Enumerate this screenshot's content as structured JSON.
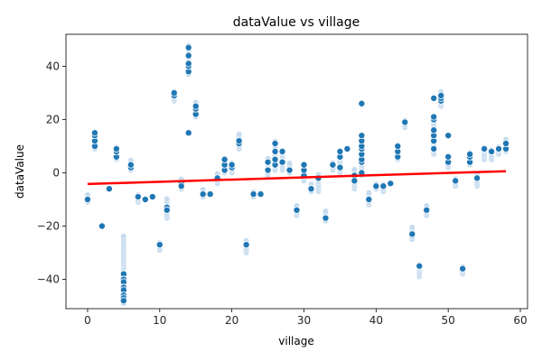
{
  "chart_data": {
    "type": "scatter",
    "title": "dataValue vs village",
    "xlabel": "village",
    "ylabel": "dataValue",
    "xlim": [
      -3,
      61
    ],
    "ylim": [
      -51,
      52
    ],
    "xticks": [
      0,
      10,
      20,
      30,
      40,
      50,
      60
    ],
    "yticks": [
      -40,
      -20,
      0,
      20,
      40
    ],
    "grid": false,
    "colors": {
      "point_fill": "#1f77b4",
      "point_edge": "#ffffff",
      "faded_point": "#c6dbef",
      "trend_line": "#ff0000",
      "axis": "#000000"
    },
    "points": [
      [
        0,
        -10
      ],
      [
        1,
        10
      ],
      [
        1,
        12
      ],
      [
        1,
        14
      ],
      [
        1,
        15
      ],
      [
        2,
        -20
      ],
      [
        3,
        -6
      ],
      [
        4,
        6
      ],
      [
        4,
        8
      ],
      [
        4,
        9
      ],
      [
        5,
        -38
      ],
      [
        5,
        -40
      ],
      [
        5,
        -41
      ],
      [
        5,
        -43
      ],
      [
        5,
        -44
      ],
      [
        5,
        -46
      ],
      [
        5,
        -47
      ],
      [
        5,
        -48
      ],
      [
        6,
        2
      ],
      [
        6,
        3
      ],
      [
        7,
        -9
      ],
      [
        8,
        -10
      ],
      [
        9,
        -9
      ],
      [
        10,
        -27
      ],
      [
        11,
        -13
      ],
      [
        11,
        -14
      ],
      [
        12,
        29
      ],
      [
        12,
        30
      ],
      [
        13,
        -4
      ],
      [
        13,
        -5
      ],
      [
        14,
        15
      ],
      [
        14,
        38
      ],
      [
        14,
        40
      ],
      [
        14,
        41
      ],
      [
        14,
        44
      ],
      [
        14,
        47
      ],
      [
        15,
        22
      ],
      [
        15,
        24
      ],
      [
        15,
        25
      ],
      [
        16,
        -8
      ],
      [
        17,
        -8
      ],
      [
        18,
        -2
      ],
      [
        19,
        1
      ],
      [
        19,
        3
      ],
      [
        19,
        5
      ],
      [
        20,
        2
      ],
      [
        20,
        3
      ],
      [
        21,
        11
      ],
      [
        21,
        12
      ],
      [
        22,
        -27
      ],
      [
        23,
        -8
      ],
      [
        24,
        -8
      ],
      [
        25,
        1
      ],
      [
        25,
        4
      ],
      [
        26,
        3
      ],
      [
        26,
        5
      ],
      [
        26,
        8
      ],
      [
        26,
        11
      ],
      [
        27,
        4
      ],
      [
        27,
        8
      ],
      [
        28,
        1
      ],
      [
        29,
        -14
      ],
      [
        30,
        -1
      ],
      [
        30,
        1
      ],
      [
        30,
        3
      ],
      [
        31,
        -6
      ],
      [
        32,
        -2
      ],
      [
        33,
        -17
      ],
      [
        34,
        3
      ],
      [
        35,
        2
      ],
      [
        35,
        6
      ],
      [
        35,
        8
      ],
      [
        36,
        9
      ],
      [
        37,
        -1
      ],
      [
        37,
        -3
      ],
      [
        38,
        0
      ],
      [
        38,
        4
      ],
      [
        38,
        5
      ],
      [
        38,
        7
      ],
      [
        38,
        9
      ],
      [
        38,
        10
      ],
      [
        38,
        12
      ],
      [
        38,
        14
      ],
      [
        38,
        26
      ],
      [
        39,
        -10
      ],
      [
        40,
        -5
      ],
      [
        41,
        -5
      ],
      [
        42,
        -4
      ],
      [
        43,
        6
      ],
      [
        43,
        8
      ],
      [
        43,
        10
      ],
      [
        44,
        19
      ],
      [
        45,
        -23
      ],
      [
        46,
        -35
      ],
      [
        47,
        -14
      ],
      [
        48,
        9
      ],
      [
        48,
        12
      ],
      [
        48,
        14
      ],
      [
        48,
        16
      ],
      [
        48,
        20
      ],
      [
        48,
        21
      ],
      [
        48,
        28
      ],
      [
        49,
        27
      ],
      [
        49,
        28
      ],
      [
        49,
        29
      ],
      [
        50,
        4
      ],
      [
        50,
        6
      ],
      [
        50,
        14
      ],
      [
        51,
        -3
      ],
      [
        52,
        -36
      ],
      [
        53,
        4
      ],
      [
        53,
        6
      ],
      [
        53,
        7
      ],
      [
        54,
        -2
      ],
      [
        55,
        9
      ],
      [
        56,
        8
      ],
      [
        57,
        9
      ],
      [
        58,
        9
      ],
      [
        58,
        11
      ]
    ],
    "faded_ranges": [
      [
        0,
        -11,
        -8
      ],
      [
        1,
        9,
        16
      ],
      [
        4,
        5,
        10
      ],
      [
        5,
        -49,
        -23
      ],
      [
        6,
        1,
        5
      ],
      [
        7,
        -11,
        -8
      ],
      [
        10,
        -29,
        -26
      ],
      [
        11,
        -17,
        -9
      ],
      [
        12,
        27,
        31
      ],
      [
        13,
        -6,
        -2
      ],
      [
        14,
        37,
        48
      ],
      [
        15,
        21,
        27
      ],
      [
        16,
        -9,
        -6
      ],
      [
        18,
        -4,
        0
      ],
      [
        19,
        0,
        6
      ],
      [
        20,
        0,
        4
      ],
      [
        21,
        9,
        15
      ],
      [
        22,
        -30,
        -25
      ],
      [
        23,
        -9,
        -7
      ],
      [
        25,
        -1,
        6
      ],
      [
        26,
        1,
        12
      ],
      [
        27,
        1,
        9
      ],
      [
        28,
        0,
        4
      ],
      [
        29,
        -16,
        -12
      ],
      [
        30,
        -3,
        4
      ],
      [
        31,
        -7,
        -4
      ],
      [
        32,
        -7,
        0
      ],
      [
        33,
        -18,
        -14
      ],
      [
        34,
        1,
        4
      ],
      [
        35,
        0,
        9
      ],
      [
        37,
        -6,
        2
      ],
      [
        38,
        -1,
        15
      ],
      [
        39,
        -12,
        -7
      ],
      [
        40,
        -6,
        -4
      ],
      [
        41,
        -7,
        -4
      ],
      [
        43,
        5,
        11
      ],
      [
        44,
        17,
        20
      ],
      [
        45,
        -25,
        -20
      ],
      [
        46,
        -39,
        -34
      ],
      [
        47,
        -16,
        -12
      ],
      [
        48,
        7,
        22
      ],
      [
        49,
        25,
        31
      ],
      [
        50,
        2,
        7
      ],
      [
        51,
        -5,
        -2
      ],
      [
        52,
        -38,
        -35
      ],
      [
        53,
        3,
        8
      ],
      [
        54,
        -5,
        0
      ],
      [
        55,
        5,
        10
      ],
      [
        56,
        5,
        9
      ],
      [
        57,
        7,
        10
      ],
      [
        58,
        8,
        13
      ]
    ],
    "trend_line": {
      "x": [
        0,
        58
      ],
      "y": [
        -4.2,
        0.6
      ]
    }
  }
}
